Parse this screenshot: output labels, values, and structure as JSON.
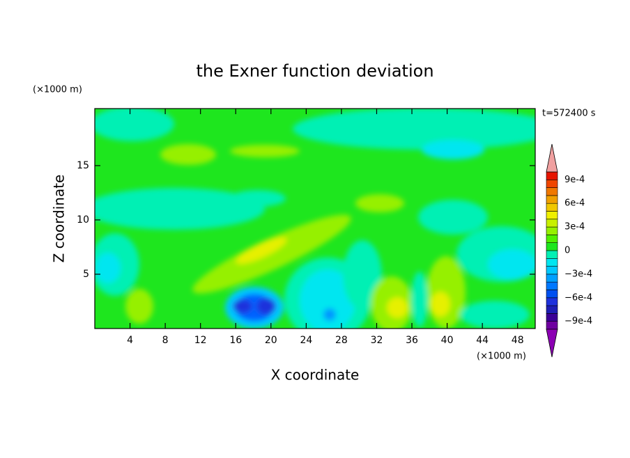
{
  "chart_data": {
    "type": "contour",
    "title": "the Exner function deviation",
    "subtitle": "t=572400 s",
    "x_label": "X coordinate",
    "y_label": "Z coordinate",
    "x_unit": "(×1000 m)",
    "y_unit": "(×1000 m)",
    "xlim": [
      0,
      50
    ],
    "xticks": [
      4,
      8,
      12,
      16,
      20,
      24,
      28,
      32,
      36,
      40,
      44,
      48
    ],
    "ylim": [
      0,
      20.25
    ],
    "yticks": [
      5,
      10,
      15
    ],
    "colorbar": {
      "lim": [
        -0.001,
        0.001
      ],
      "ticks": [
        {
          "value": 0.0009,
          "label": "9e-4"
        },
        {
          "value": 0.0006,
          "label": "6e-4"
        },
        {
          "value": 0.0003,
          "label": "3e-4"
        },
        0,
        {
          "value": -0.0003,
          "label": "−3e-4"
        },
        {
          "value": -0.0006,
          "label": "−6e-4"
        },
        {
          "value": -0.0009,
          "label": "−9e-4"
        }
      ],
      "colors": [
        "#6e00a0",
        "#3c0096",
        "#1e1eb4",
        "#1e32dc",
        "#0050f0",
        "#0078ff",
        "#00a0ff",
        "#00c8ff",
        "#00e6f0",
        "#00f0b4",
        "#1ee61e",
        "#50f000",
        "#96f000",
        "#c8f000",
        "#f0f000",
        "#f0c800",
        "#f0a000",
        "#f07800",
        "#f04600",
        "#e61400"
      ],
      "over_color": "#f0a0a0",
      "under_color": "#8c00b4"
    }
  }
}
